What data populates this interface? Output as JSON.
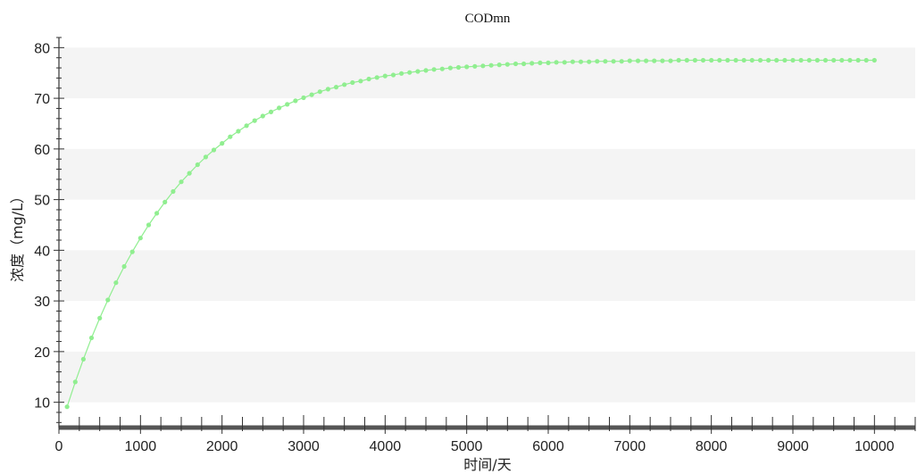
{
  "chart_data": {
    "type": "line",
    "title": "CODmn",
    "xlabel": "时间/天",
    "ylabel": "浓度（mg/L）",
    "xlim": [
      0,
      10500
    ],
    "ylim": [
      5,
      82
    ],
    "xticks": [
      0,
      1000,
      2000,
      3000,
      4000,
      5000,
      6000,
      7000,
      8000,
      9000,
      10000
    ],
    "yticks": [
      10,
      20,
      30,
      40,
      50,
      60,
      70,
      80
    ],
    "grid": "alternating horizontal bands",
    "legend": "none",
    "series": [
      {
        "color": "#90ee90",
        "marker": "circle",
        "x": [
          100,
          200,
          300,
          400,
          500,
          600,
          700,
          800,
          900,
          1000,
          1100,
          1200,
          1300,
          1400,
          1500,
          1600,
          1700,
          1800,
          1900,
          2000,
          2100,
          2200,
          2300,
          2400,
          2500,
          2600,
          2700,
          2800,
          2900,
          3000,
          3100,
          3200,
          3300,
          3400,
          3500,
          3600,
          3700,
          3800,
          3900,
          4000,
          4100,
          4200,
          4300,
          4400,
          4500,
          4600,
          4700,
          4800,
          4900,
          5000,
          5100,
          5200,
          5300,
          5400,
          5500,
          5600,
          5700,
          5800,
          5900,
          6000,
          6100,
          6200,
          6300,
          6400,
          6500,
          6600,
          6700,
          6800,
          6900,
          7000,
          7100,
          7200,
          7300,
          7400,
          7500,
          7600,
          7700,
          7800,
          7900,
          8000,
          8100,
          8200,
          8300,
          8400,
          8500,
          8600,
          8700,
          8800,
          8900,
          9000,
          9100,
          9200,
          9300,
          9400,
          9500,
          9600,
          9700,
          9800,
          9900,
          10000
        ],
        "y": [
          9.1,
          14.0,
          18.5,
          22.7,
          26.6,
          30.2,
          33.6,
          36.8,
          39.7,
          42.4,
          45.0,
          47.3,
          49.5,
          51.6,
          53.5,
          55.2,
          56.9,
          58.4,
          59.8,
          61.1,
          62.4,
          63.5,
          64.6,
          65.6,
          66.5,
          67.3,
          68.1,
          68.8,
          69.5,
          70.1,
          70.7,
          71.3,
          71.8,
          72.2,
          72.7,
          73.1,
          73.4,
          73.8,
          74.1,
          74.4,
          74.6,
          74.9,
          75.1,
          75.3,
          75.5,
          75.7,
          75.8,
          76.0,
          76.1,
          76.2,
          76.3,
          76.4,
          76.5,
          76.6,
          76.7,
          76.8,
          76.8,
          76.9,
          77.0,
          77.0,
          77.1,
          77.1,
          77.2,
          77.2,
          77.2,
          77.3,
          77.3,
          77.3,
          77.3,
          77.4,
          77.4,
          77.4,
          77.4,
          77.4,
          77.4,
          77.5,
          77.5,
          77.5,
          77.5,
          77.5,
          77.5,
          77.5,
          77.5,
          77.5,
          77.5,
          77.5,
          77.5,
          77.5,
          77.5,
          77.5,
          77.5,
          77.5,
          77.5,
          77.5,
          77.5,
          77.5,
          77.5,
          77.5,
          77.5,
          77.5
        ]
      }
    ]
  }
}
